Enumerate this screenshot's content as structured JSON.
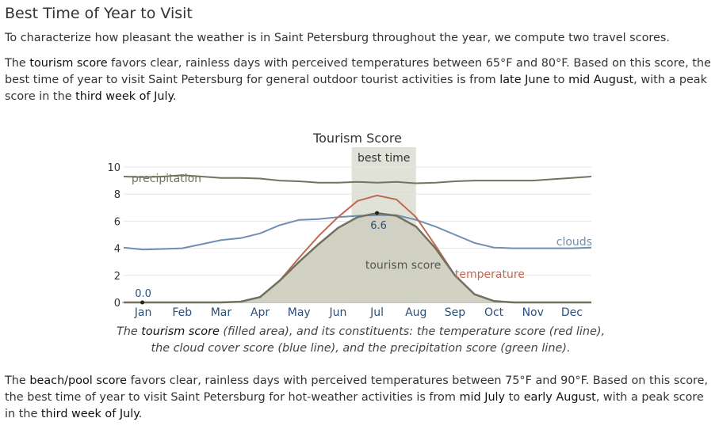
{
  "section_title": "Best Time of Year to Visit",
  "intro": "To characterize how pleasant the weather is in Saint Petersburg throughout the year, we compute two travel scores.",
  "tourism_paragraph": {
    "p1": "The ",
    "s1": "tourism score",
    "p2": " favors clear, rainless days with perceived temperatures between 65°F and 80°F. Based on this score, the best time of year to visit Saint Petersburg for general outdoor tourist activities is from ",
    "s2": "late June",
    "p3": " to ",
    "s3": "mid August",
    "p4": ", with a peak score in the ",
    "s4": "third week of July",
    "p5": "."
  },
  "caption": {
    "p1": "The ",
    "s1": "tourism score",
    "p2": " (filled area), and its constituents: the temperature score (red line), the cloud cover score (blue line), and the precipitation score (green line)."
  },
  "beach_paragraph": {
    "p1": "The ",
    "s1": "beach/pool score",
    "p2": " favors clear, rainless days with perceived temperatures between 75°F and 90°F. Based on this score, the best time of year to visit Saint Petersburg for hot-weather activities is from ",
    "s2": "mid July",
    "p3": " to ",
    "s3": "early August",
    "p4": ", with a peak score in the ",
    "s4": "third week of July",
    "p5": "."
  },
  "colors": {
    "tourism_fill": "#cfd0c1",
    "tourism_line": "#72705f",
    "temperature": "#c06a52",
    "clouds": "#6f8fb0",
    "precipitation": "#747260",
    "best_band": "#d6d7ca",
    "month_label": "#2a4f7c"
  },
  "chart_data": {
    "type": "area",
    "title": "Tourism Score",
    "x": [
      0,
      0.5,
      1,
      1.5,
      2,
      2.5,
      3,
      3.5,
      4,
      4.5,
      5,
      5.5,
      6,
      6.5,
      7,
      7.5,
      8,
      8.5,
      9,
      9.5,
      10,
      10.5,
      11,
      11.5,
      12
    ],
    "month_labels": [
      "Jan",
      "Feb",
      "Mar",
      "Apr",
      "May",
      "Jun",
      "Jul",
      "Aug",
      "Sep",
      "Oct",
      "Nov",
      "Dec"
    ],
    "ylim": [
      0,
      10
    ],
    "y_ticks": [
      "0",
      "2",
      "4",
      "6",
      "8",
      "10"
    ],
    "grid": true,
    "best_time": {
      "label": "best time",
      "start": 5.85,
      "end": 7.5
    },
    "series": [
      {
        "name": "tourism score",
        "kind": "area",
        "values": [
          0,
          0,
          0,
          0,
          0,
          0,
          0.05,
          0.4,
          1.6,
          3.0,
          4.3,
          5.5,
          6.3,
          6.6,
          6.4,
          5.6,
          4.0,
          2.0,
          0.6,
          0.1,
          0,
          0,
          0,
          0,
          0
        ]
      },
      {
        "name": "temperature",
        "kind": "line",
        "values": [
          0,
          0,
          0,
          0,
          0,
          0,
          0.05,
          0.4,
          1.6,
          3.3,
          4.9,
          6.3,
          7.5,
          7.9,
          7.6,
          6.3,
          4.2,
          2.0,
          0.6,
          0.1,
          0,
          0,
          0,
          0,
          0
        ]
      },
      {
        "name": "clouds",
        "kind": "line",
        "values": [
          4.05,
          3.9,
          3.95,
          4.0,
          4.3,
          4.6,
          4.75,
          5.1,
          5.7,
          6.1,
          6.15,
          6.3,
          6.4,
          6.45,
          6.45,
          6.1,
          5.6,
          5.0,
          4.4,
          4.05,
          4.0,
          4.0,
          4.0,
          4.0,
          4.05
        ]
      },
      {
        "name": "precipitation",
        "kind": "line",
        "values": [
          9.3,
          9.25,
          9.3,
          9.4,
          9.3,
          9.2,
          9.2,
          9.15,
          9.0,
          8.95,
          8.85,
          8.85,
          8.9,
          8.85,
          8.9,
          8.8,
          8.85,
          8.95,
          9.0,
          9.0,
          9.0,
          9.0,
          9.1,
          9.2,
          9.3
        ]
      }
    ],
    "annotations": [
      {
        "text": "6.6",
        "x": 6.5,
        "y": 6.6
      },
      {
        "text": "0.0",
        "x": 0.5,
        "y": 0
      },
      {
        "text": "tourism score",
        "x": 6.2,
        "y": 2.5
      },
      {
        "text": "precipitation",
        "x": 0.2,
        "y": 8.9
      },
      {
        "text": "clouds",
        "x": 11.1,
        "y": 4.2
      },
      {
        "text": "temperature",
        "x": 8.5,
        "y": 1.8
      }
    ]
  }
}
